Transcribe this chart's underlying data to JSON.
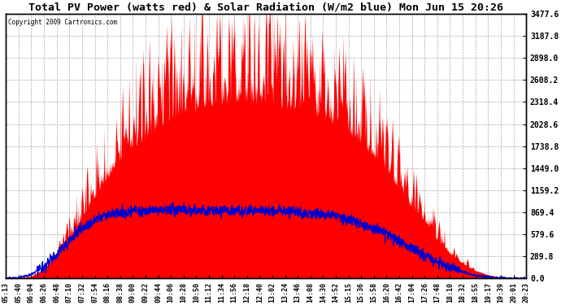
{
  "title": "Total PV Power (watts red) & Solar Radiation (W/m2 blue) Mon Jun 15 20:26",
  "copyright": "Copyright 2009 Cartronics.com",
  "y_max": 3477.6,
  "y_min": 0.0,
  "y_ticks": [
    0.0,
    289.8,
    579.6,
    869.4,
    1159.2,
    1449.0,
    1738.8,
    2028.6,
    2318.4,
    2608.2,
    2898.0,
    3187.8,
    3477.6
  ],
  "x_labels": [
    "05:13",
    "05:40",
    "06:04",
    "06:26",
    "06:48",
    "07:10",
    "07:32",
    "07:54",
    "08:16",
    "08:38",
    "09:00",
    "09:22",
    "09:44",
    "10:06",
    "10:28",
    "10:50",
    "11:12",
    "11:34",
    "11:56",
    "12:18",
    "12:40",
    "13:02",
    "13:24",
    "13:46",
    "14:08",
    "14:30",
    "14:52",
    "15:15",
    "15:36",
    "15:58",
    "16:20",
    "16:42",
    "17:04",
    "17:26",
    "17:48",
    "18:10",
    "18:32",
    "18:55",
    "19:17",
    "19:39",
    "20:01",
    "20:23"
  ],
  "background_color": "#ffffff",
  "plot_bg_color": "#ffffff",
  "grid_color": "#aaaaaa",
  "red_color": "#ff0000",
  "blue_color": "#0000cc",
  "title_fontsize": 9.5,
  "base_pv": [
    0,
    5,
    30,
    120,
    280,
    520,
    780,
    1050,
    1300,
    1520,
    1700,
    1820,
    1950,
    2050,
    2150,
    2200,
    2250,
    2280,
    2300,
    2300,
    2280,
    2260,
    2230,
    2200,
    2150,
    2080,
    2000,
    1900,
    1750,
    1580,
    1380,
    1150,
    920,
    700,
    490,
    320,
    190,
    100,
    45,
    15,
    3,
    0
  ],
  "solar_rad_w": [
    0,
    3,
    18,
    55,
    110,
    175,
    230,
    270,
    295,
    305,
    310,
    310,
    312,
    314,
    315,
    316,
    316,
    315,
    314,
    313,
    312,
    310,
    308,
    305,
    300,
    295,
    285,
    272,
    255,
    233,
    205,
    172,
    138,
    105,
    75,
    50,
    30,
    15,
    6,
    2,
    0,
    0
  ]
}
